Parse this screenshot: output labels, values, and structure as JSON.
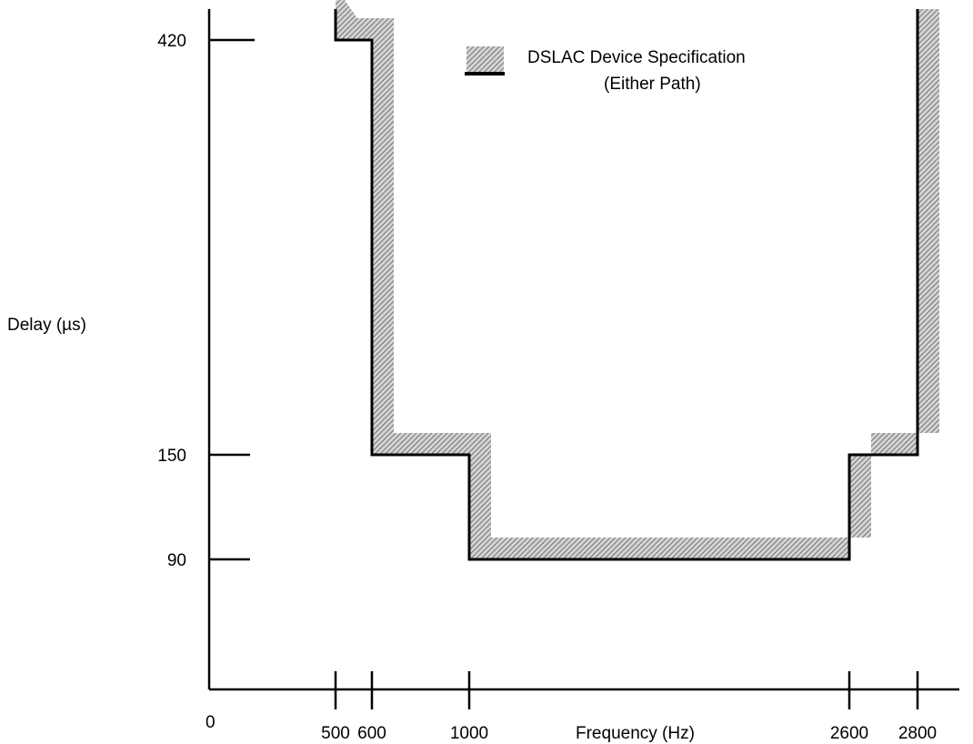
{
  "chart_data": {
    "type": "line",
    "title": "",
    "xlabel": "Frequency (Hz)",
    "ylabel": "Delay (µs)",
    "origin_label": "0",
    "x_ticks": [
      500,
      600,
      1000,
      2600,
      2800
    ],
    "y_ticks": [
      90,
      150,
      420
    ],
    "legend": {
      "position": "top-center",
      "line1": "DSLAC Device Specification",
      "line2": "(Either Path)"
    },
    "series": [
      {
        "name": "DSLAC Device Specification (Either Path)",
        "segments": [
          {
            "points": [
              [
                500,
                440
              ],
              [
                500,
                420
              ],
              [
                600,
                420
              ],
              [
                600,
                150
              ],
              [
                1000,
                150
              ],
              [
                1000,
                90
              ],
              [
                2600,
                90
              ],
              [
                2600,
                150
              ],
              [
                2800,
                150
              ],
              [
                2800,
                440
              ]
            ]
          }
        ]
      }
    ],
    "grid": false,
    "colors": {
      "line": "#000000",
      "hatch": "#6a6a6a"
    }
  }
}
